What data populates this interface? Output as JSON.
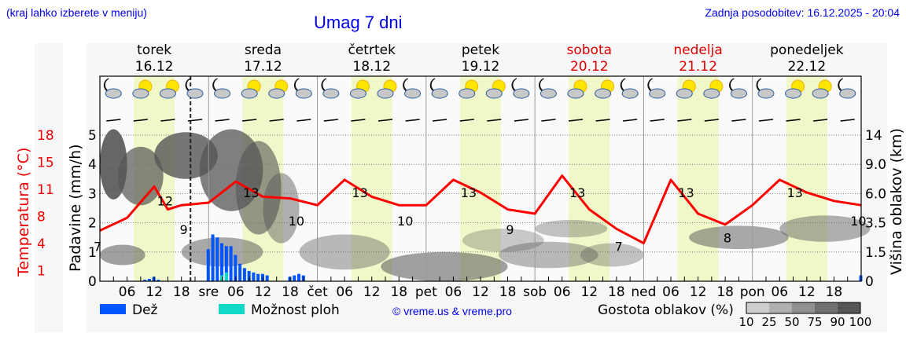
{
  "header": {
    "left_note": "(kraj lahko izberete v meniju)",
    "title": "Umag 7 dni",
    "updated": "Zadnja posodobitev: 16.12.2025 - 20:04"
  },
  "days": [
    {
      "name": "torek",
      "date": "16.12",
      "weekend": false,
      "abbr": ""
    },
    {
      "name": "sreda",
      "date": "17.12",
      "weekend": false,
      "abbr": "sre"
    },
    {
      "name": "četrtek",
      "date": "18.12",
      "weekend": false,
      "abbr": "čet"
    },
    {
      "name": "petek",
      "date": "19.12",
      "weekend": false,
      "abbr": "pet"
    },
    {
      "name": "sobota",
      "date": "20.12",
      "weekend": true,
      "abbr": "sob"
    },
    {
      "name": "nedelja",
      "date": "21.12",
      "weekend": true,
      "abbr": "ned"
    },
    {
      "name": "ponedeljek",
      "date": "22.12",
      "weekend": false,
      "abbr": "pon"
    }
  ],
  "axes": {
    "temp_label": "Temperatura (°C)",
    "temp_ticks": [
      "18",
      "15",
      "11",
      "8",
      "4",
      "1"
    ],
    "precip_label": "Padavine (mm/h)",
    "precip_ticks": [
      "0",
      "1",
      "2",
      "3",
      "4",
      "5"
    ],
    "cloud_label": "Višina oblakov (km)",
    "cloud_ticks": [
      "0",
      "1.5",
      "3.5",
      "6.0",
      "9.0",
      "14"
    ],
    "hour_ticks": [
      "06",
      "12",
      "18"
    ]
  },
  "legend": {
    "rain": "Dež",
    "showers": "Možnost ploh",
    "copyright": "© vreme.us & vreme.pro",
    "cloud_density": "Gostota oblakov (%)",
    "cloud_scale": [
      "10",
      "25",
      "50",
      "75",
      "90",
      "100"
    ]
  },
  "colors": {
    "rain": "#0055ff",
    "showers": "#11d9c8",
    "temperature": "#ff0000",
    "daylight": "#f0f7c8",
    "title": "#0000ee",
    "weekend": "#dd0000"
  },
  "chart_data": {
    "type": "line",
    "title": "Umag 7 dni",
    "xlabel": "",
    "ylabel": "Padavine (mm/h)",
    "y2label": "Temperatura (°C)",
    "y3label": "Višina oblakov (km)",
    "ylim": [
      0,
      5
    ],
    "series": [
      {
        "name": "Temperatura (°C)",
        "hours": [
          0,
          6,
          12,
          15,
          18,
          24,
          30,
          36,
          42,
          48,
          54,
          60,
          66,
          72,
          78,
          84,
          90,
          96,
          102,
          108,
          114,
          120,
          126,
          132,
          138,
          144,
          150,
          156,
          162,
          168
        ],
        "values": [
          7.0,
          8.5,
          12.2,
          9.5,
          10.0,
          10.3,
          12.8,
          11.0,
          10.8,
          10.0,
          13.0,
          11.0,
          10.0,
          10.0,
          13.0,
          11.5,
          9.5,
          9.0,
          13.5,
          9.5,
          7.2,
          5.5,
          13.0,
          9.0,
          7.7,
          10.0,
          13.0,
          11.5,
          10.5,
          10.0
        ],
        "labels": [
          {
            "hour": 0,
            "value": "7"
          },
          {
            "hour": 14,
            "value": "12"
          },
          {
            "hour": 19,
            "value": "9"
          },
          {
            "hour": 33,
            "value": "13"
          },
          {
            "hour": 43,
            "value": "10"
          },
          {
            "hour": 57,
            "value": "13"
          },
          {
            "hour": 67,
            "value": "10"
          },
          {
            "hour": 81,
            "value": "13"
          },
          {
            "hour": 91,
            "value": "9"
          },
          {
            "hour": 105,
            "value": "13"
          },
          {
            "hour": 115,
            "value": "7"
          },
          {
            "hour": 129,
            "value": "13"
          },
          {
            "hour": 139,
            "value": "8"
          },
          {
            "hour": 153,
            "value": "13"
          },
          {
            "hour": 167,
            "value": "10"
          }
        ]
      },
      {
        "name": "Dež (mm/h)",
        "hours": [
          10,
          11,
          12,
          13,
          24,
          25,
          26,
          27,
          28,
          29,
          30,
          31,
          32,
          33,
          34,
          35,
          36,
          37,
          42,
          43,
          44,
          45,
          168
        ],
        "values": [
          0.05,
          0.08,
          0.15,
          0.05,
          1.1,
          1.6,
          1.5,
          1.3,
          1.2,
          1.2,
          0.9,
          0.6,
          0.45,
          0.35,
          0.3,
          0.25,
          0.25,
          0.2,
          0.15,
          0.2,
          0.25,
          0.2,
          0.2
        ]
      },
      {
        "name": "Možnost ploh",
        "hours": [
          27,
          28
        ],
        "values": [
          0.2,
          0.3
        ]
      }
    ],
    "day_labels": [
      "torek 16.12",
      "sreda 17.12",
      "četrtek 18.12",
      "petek 19.12",
      "sobota 20.12",
      "nedelja 21.12",
      "ponedeljek 22.12"
    ],
    "temp_ticks": [
      1,
      4,
      8,
      11,
      15,
      18
    ],
    "cloud_height_ticks": [
      0,
      1.5,
      3.5,
      6.0,
      9.0,
      14
    ],
    "cloud_density_scale": [
      10,
      25,
      50,
      75,
      90,
      100
    ],
    "current_time_marker_hour": 20,
    "grid": true
  }
}
